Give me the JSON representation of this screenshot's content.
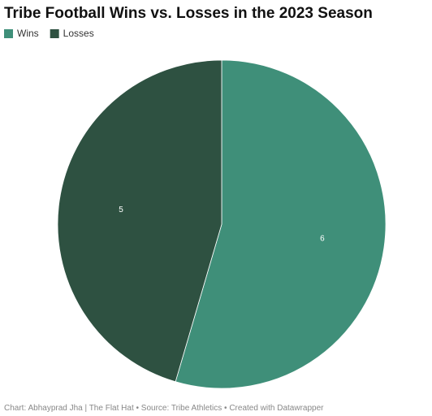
{
  "chart_data": {
    "type": "pie",
    "title": "Tribe Football Wins vs. Losses in the 2023 Season",
    "categories": [
      "Wins",
      "Losses"
    ],
    "values": [
      6,
      5
    ],
    "colors": [
      "#3f8f79",
      "#2e5141"
    ],
    "footer": "Chart: Abhayprad Jha | The Flat Hat • Source: Tribe Athletics • Created with Datawrapper"
  }
}
